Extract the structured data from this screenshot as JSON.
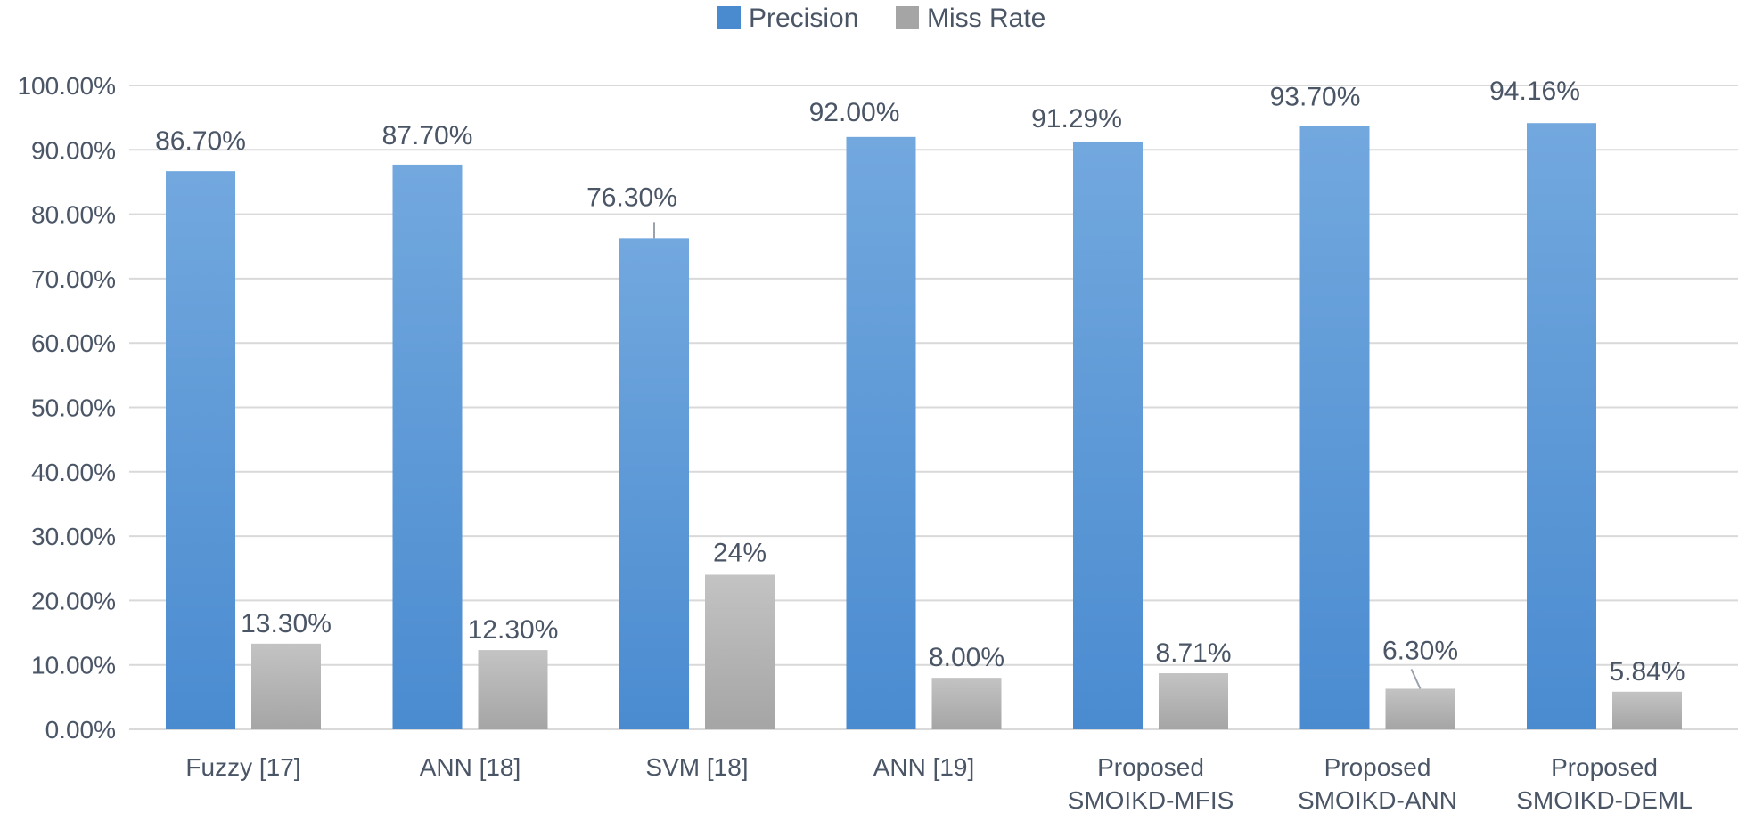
{
  "colors": {
    "precision": "#4a8bd0",
    "precision_light": "#72a8de",
    "miss_rate": "#a5a5a5",
    "miss_rate_light": "#c3c3c3",
    "text": "#4a5566",
    "grid": "#d9d9d9"
  },
  "chart_data": {
    "type": "bar",
    "title": "",
    "xlabel": "",
    "ylabel": "",
    "ylim": [
      0,
      100
    ],
    "y_ticks": [
      "0.00%",
      "10.00%",
      "20.00%",
      "30.00%",
      "40.00%",
      "50.00%",
      "60.00%",
      "70.00%",
      "80.00%",
      "90.00%",
      "100.00%"
    ],
    "y_tick_values": [
      0,
      10,
      20,
      30,
      40,
      50,
      60,
      70,
      80,
      90,
      100
    ],
    "legend_position": "top-center",
    "grid": true,
    "categories": [
      [
        "Fuzzy [17]"
      ],
      [
        "ANN [18]"
      ],
      [
        "SVM [18]"
      ],
      [
        "ANN [19]"
      ],
      [
        "Proposed",
        "SMOIKD-MFIS"
      ],
      [
        "Proposed",
        "SMOIKD-ANN"
      ],
      [
        "Proposed",
        "SMOIKD-DEML"
      ]
    ],
    "series": [
      {
        "name": "Precision",
        "values": [
          86.7,
          87.7,
          76.3,
          92.0,
          91.29,
          93.7,
          94.16
        ],
        "labels": [
          "86.70%",
          "87.70%",
          "76.30%",
          "92.00%",
          "91.29%",
          "93.70%",
          "94.16%"
        ]
      },
      {
        "name": "Miss Rate",
        "values": [
          13.3,
          12.3,
          24,
          8.0,
          8.71,
          6.3,
          5.84
        ],
        "labels": [
          "13.30%",
          "12.30%",
          "24%",
          "8.00%",
          "8.71%",
          "6.30%",
          "5.84%"
        ]
      }
    ]
  }
}
